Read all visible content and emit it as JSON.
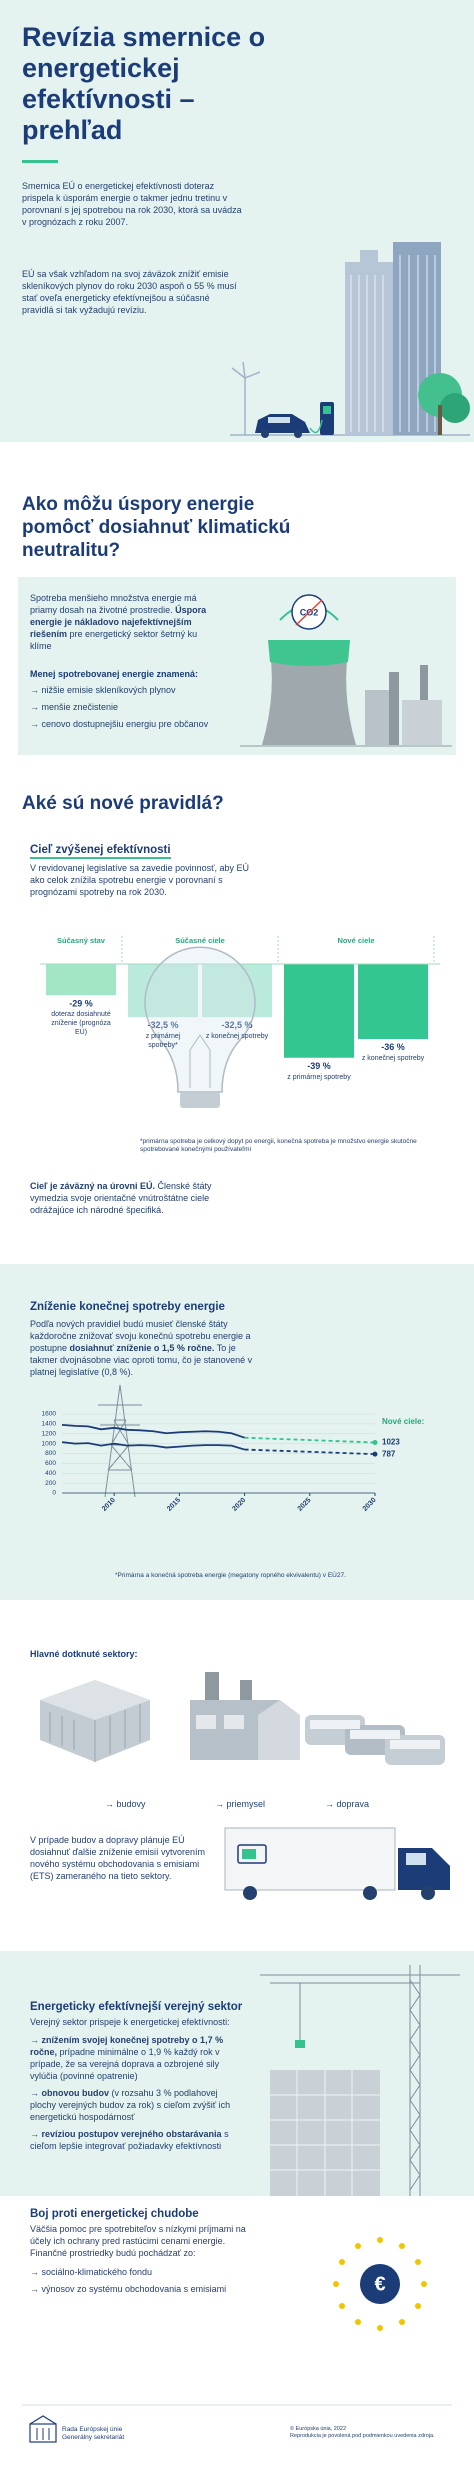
{
  "header": {
    "title": "Revízia smernice o energetickej efektívnosti – prehľad",
    "paragraphs": [
      [
        "Smernica EÚ o energetickej efektívnosti doteraz prispela k úsporám energie o takmer jednu tretinu v porovnaní s jej spotrebou na rok 2030, ktorá sa uvádza v prognózach z roku 2007."
      ],
      [
        "EÚ sa však vzhľadom na svoj záväzok znížiť emisie skleníkových plynov do roku 2030 aspoň o 55 % musí stať oveľa energeticky efektívnejšou a súčasné pravidlá si tak vyžadujú revíziu."
      ]
    ]
  },
  "neutrality": {
    "title": "Ako môžu úspory energie pomôcť dosiahnuť klimatickú neutralitu?",
    "text": [
      "Spotreba menšieho množstva energie má priamy dosah na životné prostredie. ",
      {
        "text": "Úspora energie je nákladovo najefektívnejším riešením",
        "bold": true
      },
      " pre energetický sektor šetrný ku klíme"
    ],
    "list_title": "Menej spotrebovanej energie znamená:",
    "list": [
      "→ nižšie emisie skleníkových plynov",
      "→ menšie znečistenie",
      "→ cenovo dostupnejšiu energiu pre občanov"
    ],
    "icon_text": "CO2"
  },
  "rules": {
    "title": "Aké sú nové pravidlá?",
    "subtitle": "Cieľ zvýšenej efektívnosti",
    "text": [
      "V revidovanej legislatíve sa zavedie povinnosť, aby EÚ ako celok znížila spotrebu energie v porovnaní s prognózami spotreby na rok 2030."
    ],
    "binding": [
      {
        "text": "Cieľ je záväzný na úrovni EÚ.",
        "bold": true
      },
      " Členské štáty vymedzia svoje orientačné vnútroštátne ciele odrážajúce ich národné špecifiká."
    ]
  },
  "final_consumption": {
    "title": "Zníženie konečnej spotreby energie",
    "text": [
      "Podľa nových pravidiel budú musieť členské štáty každoročne znižovať svoju konečnú spotrebu energie a postupne ",
      {
        "text": "dosiahnuť zníženie o 1,5 % ročne.",
        "bold": true
      },
      " To je takmer dvojnásobne viac oproti tomu, čo je stanovené v platnej legislatíve (0,8 %)."
    ]
  },
  "sectors": {
    "title": "Hlavné dotknuté sektory:",
    "items": [
      "→ budovy",
      "→ priemysel",
      "→ doprava"
    ],
    "ets_text": [
      "V prípade budov a dopravy plánuje EÚ dosiahnuť ďalšie zníženie emisií vytvorením nového systému obchodovania s emisiami (ETS) zameraného na tieto sektory."
    ]
  },
  "public_sector": {
    "title": "Energeticky efektívnejší verejný sektor",
    "intro": "Verejný sektor prispeje k energetickej efektívnosti:",
    "list": [
      [
        "→ ",
        {
          "text": "znížením svojej konečnej spotreby o 1,7 % ročne,",
          "bold": true
        },
        " prípadne minimálne o 1,9 % každý rok v prípade, že sa verejná doprava a ozbrojené sily vylúčia (povinné opatrenie)"
      ],
      [
        "→ ",
        {
          "text": "obnovou budov",
          "bold": true
        },
        " (v rozsahu 3 % podlahovej plochy verejných budov za rok) s cieľom zvýšiť ich energetickú hospodárnosť"
      ],
      [
        "→ ",
        {
          "text": "revíziou postupov verejného obstarávania",
          "bold": true
        },
        " s cieľom lepšie integrovať požiadavky efektívnosti"
      ]
    ]
  },
  "poverty": {
    "title": "Boj proti energetickej chudobe",
    "text": [
      "Väčšia pomoc pre spotrebiteľov s nízkymi príjmami na účely ich ochrany pred rastúcimi cenami energie. Finančné prostriedky budú pochádzať zo:"
    ],
    "list": [
      "→ sociálno-klimatického fondu",
      "→ výnosov zo systému obchodovania s emisiami"
    ],
    "icon_text": "€"
  },
  "footer": {
    "org": "Rada Európskej únie",
    "org_sub": "Generálny sekretariát",
    "copyright": "© Európska únia, 2022",
    "reproduction": "Reprodukcia je povolená pod podmienkou uvedenia zdroja."
  },
  "chart_data": [
    {
      "type": "bar",
      "groups": [
        {
          "label": "Súčasný stav",
          "color": "#a3e6c6",
          "categories": [
            "doteraz dosiahnuté zníženie (prognóza EÚ)"
          ],
          "values": [
            -29
          ],
          "value_labels": [
            "-29 %"
          ]
        },
        {
          "label": "Súčasné ciele",
          "color": "#b9eadb",
          "categories": [
            "z primárnej spotreby*",
            "z konečnej spotreby"
          ],
          "values": [
            -32.5,
            -32.5
          ],
          "value_labels": [
            "-32,5 %",
            "-32,5 %"
          ]
        },
        {
          "label": "Nové ciele",
          "color": "#33c690",
          "categories": [
            "z primárnej spotreby",
            "z konečnej spotreby"
          ],
          "values": [
            -39,
            -36
          ],
          "value_labels": [
            "-39 %",
            "-36 %"
          ]
        }
      ],
      "ylim": [
        -24,
        -40
      ],
      "footnote": "*primárna spotreba je celkový dopyt po energii, konečná spotreba je množstvo energie skutočne spotrebované konečnými používateľmi"
    },
    {
      "type": "line",
      "x": [
        2006,
        2007,
        2008,
        2009,
        2010,
        2011,
        2012,
        2013,
        2014,
        2015,
        2016,
        2017,
        2018,
        2019,
        2020,
        2030
      ],
      "series": [
        {
          "color": "#1c3c78",
          "values": [
            1380,
            1360,
            1350,
            1290,
            1320,
            1280,
            1270,
            1250,
            1210,
            1230,
            1240,
            1250,
            1240,
            1210,
            1120,
            null
          ]
        },
        {
          "color": "#1c3c78",
          "values": [
            1030,
            1000,
            1010,
            960,
            1000,
            960,
            970,
            960,
            920,
            940,
            960,
            970,
            970,
            960,
            880,
            null
          ]
        },
        {
          "color": "#2fc48e",
          "dashed": true,
          "values": [
            null,
            null,
            null,
            null,
            null,
            null,
            null,
            null,
            null,
            null,
            null,
            null,
            null,
            null,
            1120,
            1023
          ]
        },
        {
          "color": "#1c3c78",
          "dashed": true,
          "values": [
            null,
            null,
            null,
            null,
            null,
            null,
            null,
            null,
            null,
            null,
            null,
            null,
            null,
            null,
            880,
            787
          ]
        }
      ],
      "xlim": [
        2006,
        2030
      ],
      "ylim": [
        0,
        1600
      ],
      "xticks": [
        2010,
        2015,
        2020,
        2025,
        2030
      ],
      "yticks": [
        0,
        200,
        400,
        600,
        800,
        1000,
        1200,
        1400,
        1600
      ],
      "grid": true,
      "annotation": "Nové ciele:",
      "footnote": "*Primárna a konečná spotreba energie (megatony ropného ekvivalentu) v EÚ27."
    }
  ]
}
